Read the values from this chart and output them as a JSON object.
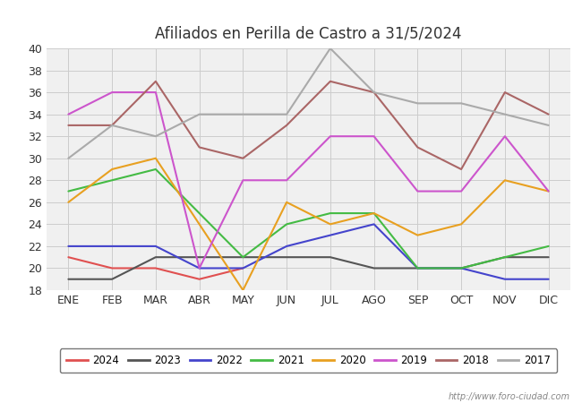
{
  "title": "Afiliados en Perilla de Castro a 31/5/2024",
  "months": [
    "ENE",
    "FEB",
    "MAR",
    "ABR",
    "MAY",
    "JUN",
    "JUL",
    "AGO",
    "SEP",
    "OCT",
    "NOV",
    "DIC"
  ],
  "ylim": [
    18,
    40
  ],
  "yticks": [
    18,
    20,
    22,
    24,
    26,
    28,
    30,
    32,
    34,
    36,
    38,
    40
  ],
  "series": {
    "2024": {
      "color": "#e05050",
      "values": [
        21,
        20,
        20,
        19,
        20,
        null,
        null,
        null,
        null,
        null,
        null,
        null
      ]
    },
    "2023": {
      "color": "#555555",
      "values": [
        19,
        19,
        21,
        21,
        21,
        21,
        21,
        20,
        20,
        20,
        21,
        21
      ]
    },
    "2022": {
      "color": "#4444cc",
      "values": [
        22,
        22,
        22,
        20,
        20,
        22,
        23,
        24,
        20,
        20,
        19,
        19
      ]
    },
    "2021": {
      "color": "#44bb44",
      "values": [
        27,
        28,
        29,
        25,
        21,
        24,
        25,
        25,
        20,
        20,
        21,
        22
      ]
    },
    "2020": {
      "color": "#e8a020",
      "values": [
        26,
        29,
        30,
        24,
        18,
        26,
        24,
        25,
        23,
        24,
        28,
        27
      ]
    },
    "2019": {
      "color": "#cc55cc",
      "values": [
        34,
        36,
        36,
        20,
        28,
        28,
        32,
        32,
        27,
        27,
        32,
        27
      ]
    },
    "2018": {
      "color": "#aa6666",
      "values": [
        33,
        33,
        37,
        31,
        30,
        33,
        37,
        36,
        31,
        29,
        36,
        34
      ]
    },
    "2017": {
      "color": "#aaaaaa",
      "values": [
        30,
        33,
        32,
        34,
        34,
        34,
        40,
        36,
        35,
        35,
        34,
        33
      ]
    }
  },
  "legend_order": [
    "2024",
    "2023",
    "2022",
    "2021",
    "2020",
    "2019",
    "2018",
    "2017"
  ],
  "watermark": "http://www.foro-ciudad.com",
  "background_color": "#ffffff",
  "plot_bg": "#f0f0f0",
  "grid_color": "#cccccc"
}
